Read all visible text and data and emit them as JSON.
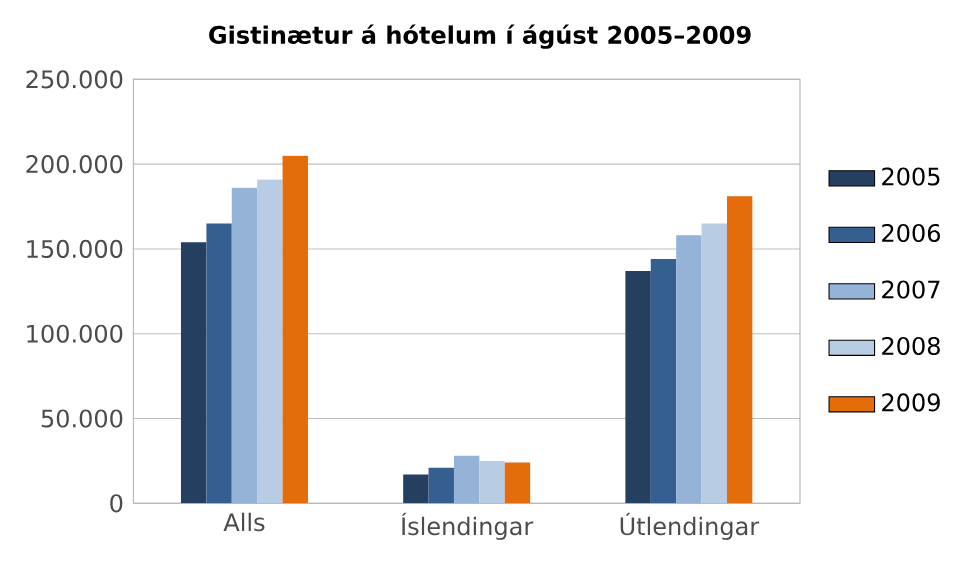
{
  "chart_data": {
    "type": "bar",
    "title": "Gistinætur á hótelum í ágúst 2005–2009",
    "categories": [
      "Alls",
      "Íslendingar",
      "Útlendingar"
    ],
    "series": [
      {
        "name": "2005",
        "color": "#243f60",
        "values": [
          154000,
          17000,
          137000
        ]
      },
      {
        "name": "2006",
        "color": "#365f91",
        "values": [
          165000,
          21000,
          144000
        ]
      },
      {
        "name": "2007",
        "color": "#95b3d7",
        "values": [
          186000,
          28000,
          158000
        ]
      },
      {
        "name": "2008",
        "color": "#b8cce4",
        "values": [
          191000,
          25000,
          165000
        ]
      },
      {
        "name": "2009",
        "color": "#e46c0a",
        "values": [
          205000,
          24000,
          181000
        ]
      }
    ],
    "ylim": [
      0,
      250000
    ],
    "yticks": [
      0,
      {
        "value": 50000,
        "label": "50.000"
      },
      {
        "value": 100000,
        "label": "100.000"
      },
      {
        "value": 150000,
        "label": "150.000"
      },
      {
        "value": 200000,
        "label": "200.000"
      },
      {
        "value": 250000,
        "label": "250.000"
      }
    ],
    "grid": "y",
    "legend": "right"
  }
}
